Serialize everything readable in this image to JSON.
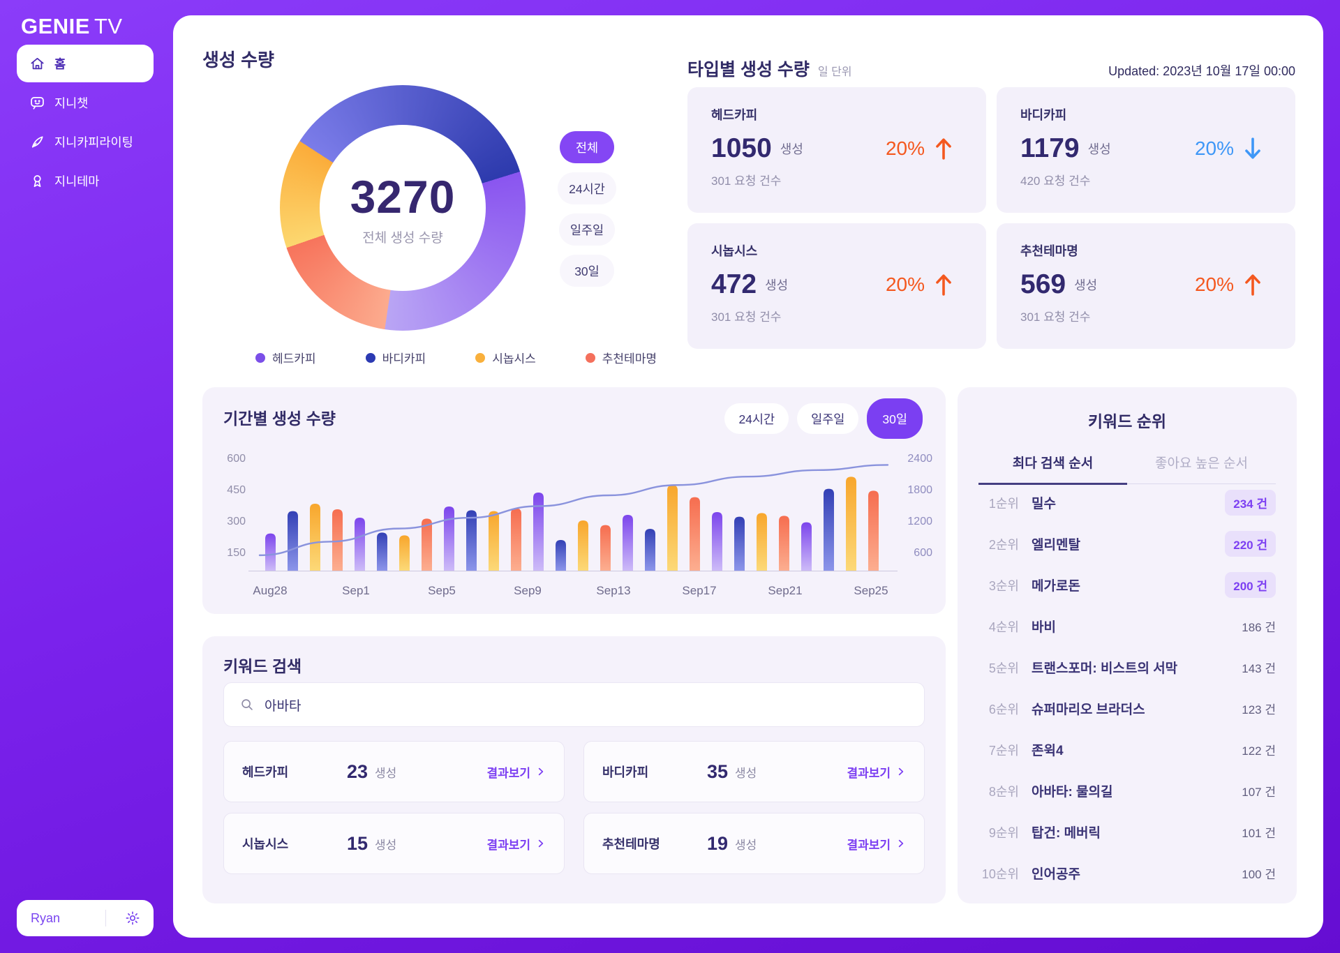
{
  "sidebar": {
    "logo_main": "GENIE",
    "logo_sub": "TV",
    "items": [
      {
        "label": "홈",
        "icon": "home-icon",
        "active": true
      },
      {
        "label": "지니챗",
        "icon": "chat-icon",
        "active": false
      },
      {
        "label": "지니카피라이팅",
        "icon": "pen-icon",
        "active": false
      },
      {
        "label": "지니테마",
        "icon": "ribbon-icon",
        "active": false
      }
    ],
    "user": {
      "name": "Ryan"
    }
  },
  "generation_summary": {
    "title": "생성 수량",
    "total": "3270",
    "total_label": "전체 생성 수량",
    "filters": [
      "전체",
      "24시간",
      "일주일",
      "30일"
    ],
    "active_filter": "전체",
    "legend": [
      {
        "label": "헤드카피",
        "color": "#7b4fe8"
      },
      {
        "label": "바디카피",
        "color": "#2c3ab2"
      },
      {
        "label": "시놉시스",
        "color": "#f9b03c"
      },
      {
        "label": "추천테마명",
        "color": "#f4705c"
      }
    ]
  },
  "type_stats": {
    "title": "타입별 생성 수량",
    "subtitle": "일 단위",
    "updated": "Updated: 2023년 10월 17일 00:00",
    "cards": [
      {
        "name": "헤드카피",
        "value": "1050",
        "unit": "생성",
        "requests": "301  요청 건수",
        "change": "20%",
        "direction": "up"
      },
      {
        "name": "바디카피",
        "value": "1179",
        "unit": "생성",
        "requests": "420  요청 건수",
        "change": "20%",
        "direction": "down"
      },
      {
        "name": "시놉시스",
        "value": "472",
        "unit": "생성",
        "requests": "301  요청 건수",
        "change": "20%",
        "direction": "up"
      },
      {
        "name": "추천테마명",
        "value": "569",
        "unit": "생성",
        "requests": "301  요청 건수",
        "change": "20%",
        "direction": "up"
      }
    ]
  },
  "period_chart": {
    "title": "기간별 생성 수량",
    "tabs": [
      "24시간",
      "일주일",
      "30일"
    ],
    "active_tab": "30일"
  },
  "keyword_search": {
    "title": "키워드 검색",
    "query": "아바타",
    "results": [
      {
        "name": "헤드카피",
        "value": "23",
        "unit": "생성",
        "action": "결과보기"
      },
      {
        "name": "바디카피",
        "value": "35",
        "unit": "생성",
        "action": "결과보기"
      },
      {
        "name": "시놉시스",
        "value": "15",
        "unit": "생성",
        "action": "결과보기"
      },
      {
        "name": "추천테마명",
        "value": "19",
        "unit": "생성",
        "action": "결과보기"
      }
    ]
  },
  "keyword_rank": {
    "title": "키워드 순위",
    "tabs": [
      "최다 검색 순서",
      "좋아요 높은 순서"
    ],
    "active_tab": "최다 검색 순서",
    "items": [
      {
        "rank": "1순위",
        "name": "밀수",
        "count": "234 건",
        "highlight": true
      },
      {
        "rank": "2순위",
        "name": "엘리멘탈",
        "count": "220 건",
        "highlight": true
      },
      {
        "rank": "3순위",
        "name": "메가로돈",
        "count": "200 건",
        "highlight": true
      },
      {
        "rank": "4순위",
        "name": "바비",
        "count": "186 건",
        "highlight": false
      },
      {
        "rank": "5순위",
        "name": "트랜스포머: 비스트의 서막",
        "count": "143 건",
        "highlight": false
      },
      {
        "rank": "6순위",
        "name": "슈퍼마리오 브라더스",
        "count": "123 건",
        "highlight": false
      },
      {
        "rank": "7순위",
        "name": "존윅4",
        "count": "122 건",
        "highlight": false
      },
      {
        "rank": "8순위",
        "name": "아바타: 물의길",
        "count": "107 건",
        "highlight": false
      },
      {
        "rank": "9순위",
        "name": "탑건: 메버릭",
        "count": "101 건",
        "highlight": false
      },
      {
        "rank": "10순위",
        "name": "인어공주",
        "count": "100 건",
        "highlight": false
      }
    ]
  },
  "chart_data": [
    {
      "type": "pie",
      "variant": "donut",
      "title": "생성 수량",
      "total": 3270,
      "center_label": "전체 생성 수량",
      "start_angle_deg": 303,
      "arc_segments": [
        {
          "label": "바디카피",
          "value": 1179,
          "color_start": "#7b7ce9",
          "color_end": "#2d3aad"
        },
        {
          "label": "헤드카피",
          "value": 1050,
          "color_start": "#8a55f0",
          "color_end": "#b9a5f4"
        },
        {
          "label": "추천테마명",
          "value": 569,
          "color_start": "#fcab8e",
          "color_end": "#f7745c"
        },
        {
          "label": "시놉시스",
          "value": 472,
          "color_start": "#fcd76f",
          "color_end": "#fbac3a"
        }
      ]
    },
    {
      "type": "bar",
      "title": "기간별 생성 수량",
      "left_axis_ticks": [
        600,
        450,
        300,
        150
      ],
      "right_axis_ticks": [
        2400,
        1800,
        1200,
        600
      ],
      "left_axis_max": 600,
      "right_axis_max": 2400,
      "x_labels": [
        "Aug28",
        "Sep1",
        "Sep5",
        "Sep9",
        "Sep13",
        "Sep17",
        "Sep21",
        "Sep25"
      ],
      "bar_values": [
        200,
        320,
        360,
        330,
        285,
        205,
        190,
        280,
        345,
        325,
        320,
        335,
        420,
        165,
        270,
        245,
        300,
        225,
        460,
        395,
        315,
        290,
        310,
        295,
        260,
        440,
        505,
        430
      ],
      "bar_color_cycle": [
        {
          "name": "purple",
          "top": "#7c45ec",
          "bottom": "#cdbbf8"
        },
        {
          "name": "blue",
          "top": "#3340b5",
          "bottom": "#8c95ea"
        },
        {
          "name": "amber",
          "top": "#f8a62c",
          "bottom": "#fcd978"
        },
        {
          "name": "salmon",
          "top": "#f66d4f",
          "bottom": "#fcae90"
        }
      ],
      "line_series": {
        "name": "trend",
        "color": "#8a93dd",
        "values": [
          330,
          620,
          900,
          1130,
          1380,
          1610,
          1830,
          2010,
          2150,
          2260
        ]
      }
    }
  ]
}
